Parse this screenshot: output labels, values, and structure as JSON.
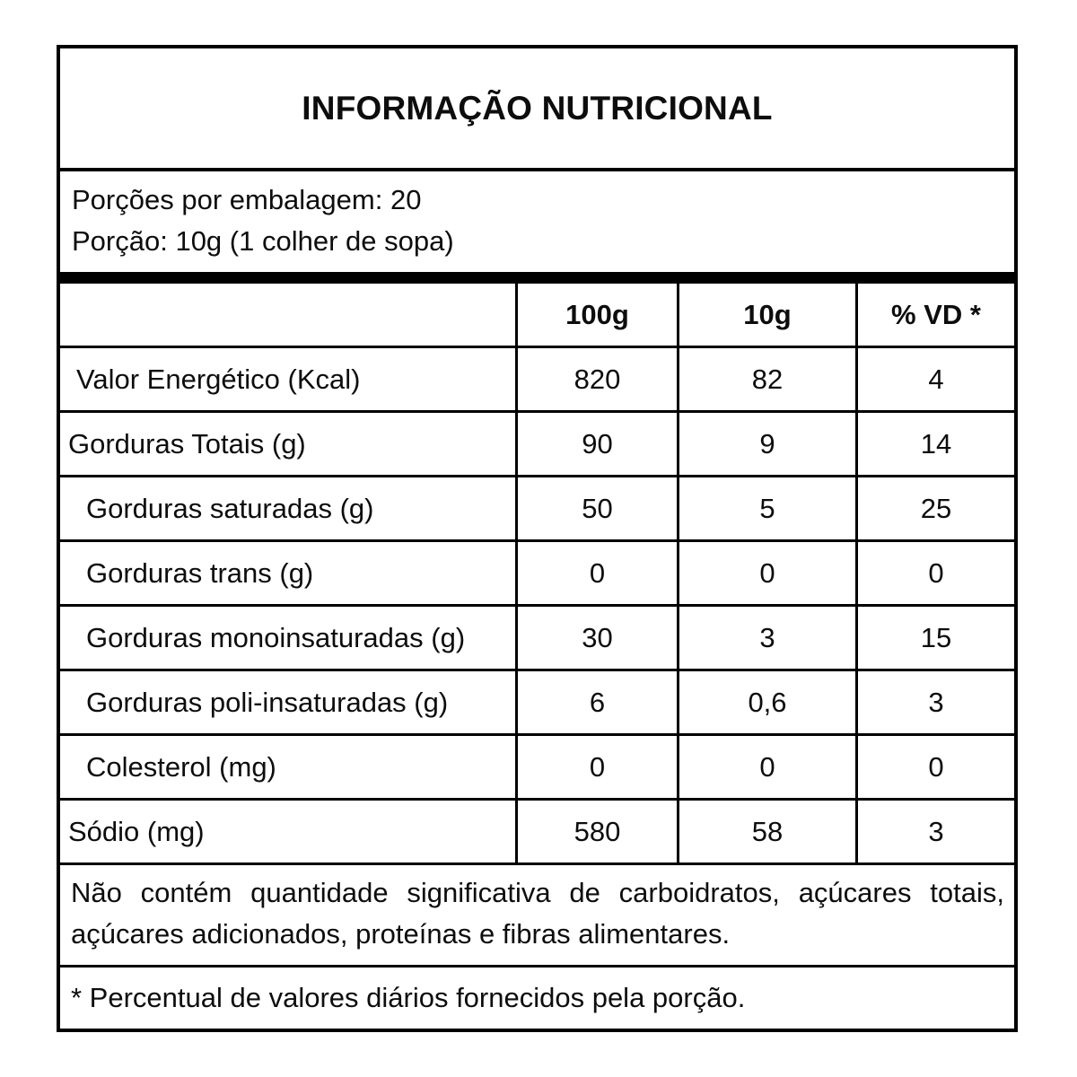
{
  "title": "INFORMAÇÃO NUTRICIONAL",
  "serving": {
    "servings_per_package": "Porções por embalagem: 20",
    "serving_size": "Porção: 10g (1 colher de sopa)"
  },
  "table": {
    "columns": [
      "100g",
      "10g",
      "% VD *"
    ],
    "rows": [
      {
        "label": "Valor Energético (Kcal)",
        "indent": 1,
        "values": [
          "820",
          "82",
          "4"
        ]
      },
      {
        "label": "Gorduras Totais (g)",
        "indent": 0,
        "values": [
          "90",
          "9",
          "14"
        ]
      },
      {
        "label": "Gorduras saturadas (g)",
        "indent": 2,
        "values": [
          "50",
          "5",
          "25"
        ]
      },
      {
        "label": "Gorduras trans (g)",
        "indent": 2,
        "values": [
          "0",
          "0",
          "0"
        ]
      },
      {
        "label": "Gorduras monoinsaturadas (g)",
        "indent": 2,
        "values": [
          "30",
          "3",
          "15"
        ]
      },
      {
        "label": "Gorduras poli-insaturadas (g)",
        "indent": 2,
        "values": [
          "6",
          "0,6",
          "3"
        ]
      },
      {
        "label": "Colesterol (mg)",
        "indent": 2,
        "values": [
          "0",
          "0",
          "0"
        ]
      },
      {
        "label": "Sódio (mg)",
        "indent": 0,
        "values": [
          "580",
          "58",
          "3"
        ]
      }
    ]
  },
  "notes": {
    "line1": "Não contém quantidade significativa de carboidratos, açúcares totais,",
    "line2": "açúcares adicionados, proteínas e fibras alimentares.",
    "footnote": "* Percentual de valores diários fornecidos pela porção."
  },
  "colors": {
    "border": "#000000",
    "text": "#0d0d0d",
    "background": "#ffffff"
  }
}
